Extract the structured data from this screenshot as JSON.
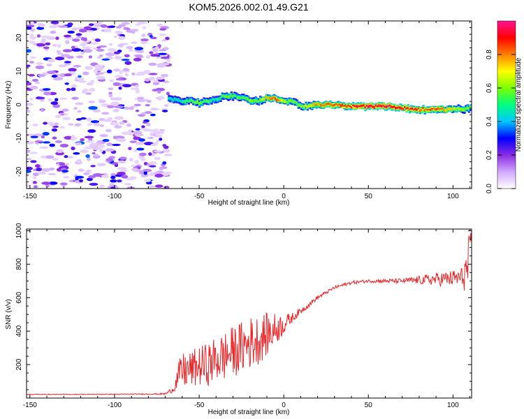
{
  "figure": {
    "title": "KOM5.2026.002.01.49.G21"
  },
  "chart_data": [
    {
      "type": "heatmap",
      "panel": "top",
      "title": "KOM5.2026.002.01.49.G21",
      "xlabel": "Height of straight line (km)",
      "ylabel": "Frequency (Hz)",
      "xlim": [
        -152,
        111
      ],
      "ylim": [
        -25,
        25
      ],
      "x_ticks": [
        -150,
        -100,
        -50,
        0,
        50,
        100
      ],
      "y_ticks": [
        -20,
        -10,
        0,
        10,
        20
      ],
      "colorbar": {
        "label": "Normalized spectral amplitude",
        "range": [
          0,
          1
        ],
        "ticks": [
          0.0,
          0.2,
          0.4,
          0.6,
          0.8
        ],
        "colormap": [
          "#ffffff",
          "#d0a8ff",
          "#8a2be2",
          "#0000ff",
          "#00c8ff",
          "#00ff80",
          "#7cff00",
          "#ffff00",
          "#ff8000",
          "#ff0000",
          "#ff1493"
        ]
      },
      "signal_track": {
        "description": "frequency of peak spectral amplitude along height",
        "height_km": [
          -68,
          -60,
          -55,
          -50,
          -45,
          -40,
          -35,
          -30,
          -25,
          -20,
          -15,
          -10,
          -5,
          0,
          5,
          10,
          20,
          30,
          40,
          50,
          60,
          70,
          80,
          90,
          100,
          110
        ],
        "frequency_hz": [
          2,
          1,
          1.2,
          0.5,
          1,
          1.5,
          2.5,
          2.5,
          2,
          1.2,
          1.2,
          2,
          2,
          1,
          1,
          -0.5,
          0,
          -0.2,
          -0.5,
          -0.5,
          -0.5,
          -1,
          -1.5,
          -1.5,
          -1.5,
          -1
        ],
        "peak_amplitude": [
          0.45,
          0.5,
          0.55,
          0.6,
          0.55,
          0.5,
          0.55,
          0.6,
          0.55,
          0.6,
          0.6,
          0.75,
          0.85,
          0.65,
          0.6,
          0.6,
          0.8,
          0.85,
          0.9,
          0.95,
          0.95,
          0.9,
          0.85,
          0.85,
          0.7,
          0.6
        ]
      },
      "noise_region": {
        "height_km": [
          -152,
          -68
        ],
        "frequency_hz": [
          -25,
          25
        ],
        "max_amplitude": 0.3
      }
    },
    {
      "type": "line",
      "panel": "bottom",
      "xlabel": "Height of straight line (km)",
      "ylabel": "SNR (v/v)",
      "xlim": [
        -152,
        111
      ],
      "ylim": [
        0,
        1010
      ],
      "x_ticks": [
        -150,
        -100,
        -50,
        0,
        50,
        100
      ],
      "y_ticks": [
        200,
        400,
        600,
        800,
        1000
      ],
      "series": [
        {
          "name": "SNR",
          "color": "#e8282a",
          "x": [
            -152,
            -140,
            -120,
            -100,
            -80,
            -70,
            -65,
            -62,
            -60,
            -55,
            -50,
            -45,
            -40,
            -35,
            -30,
            -25,
            -20,
            -15,
            -10,
            -5,
            0,
            5,
            10,
            15,
            20,
            25,
            30,
            40,
            50,
            60,
            70,
            80,
            90,
            100,
            105,
            108,
            110
          ],
          "y": [
            22,
            22,
            22,
            23,
            24,
            25,
            55,
            140,
            160,
            170,
            190,
            200,
            230,
            250,
            280,
            300,
            330,
            350,
            380,
            410,
            440,
            480,
            520,
            560,
            600,
            630,
            660,
            690,
            700,
            700,
            700,
            705,
            710,
            715,
            720,
            760,
            820
          ],
          "noise_envelope": [
            2,
            2,
            2,
            2,
            3,
            5,
            20,
            80,
            110,
            110,
            120,
            130,
            140,
            150,
            150,
            160,
            160,
            150,
            130,
            100,
            60,
            30,
            20,
            15,
            12,
            10,
            10,
            10,
            10,
            12,
            15,
            25,
            40,
            50,
            60,
            140,
            180
          ]
        }
      ]
    }
  ]
}
